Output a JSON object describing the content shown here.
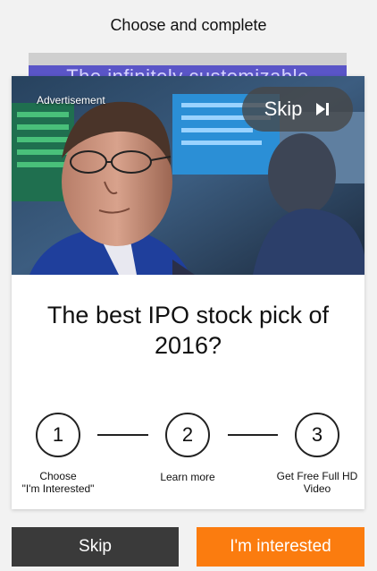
{
  "header": {
    "title": "Choose and complete"
  },
  "background_card": {
    "text": "The infinitely customizable"
  },
  "ad": {
    "label": "Advertisement",
    "skip_label": "Skip",
    "headline": "The best IPO stock pick of 2016?"
  },
  "steps": [
    {
      "number": "1",
      "label": "Choose\n\"I'm Interested\""
    },
    {
      "number": "2",
      "label": "Learn more"
    },
    {
      "number": "3",
      "label": "Get Free Full HD\nVideo"
    }
  ],
  "buttons": {
    "skip_label": "Skip",
    "interested_label": "I'm interested"
  },
  "colors": {
    "accent_orange": "#fb7c0f",
    "skip_dark": "#3a3a3a",
    "back_card_band": "#5a55c7"
  }
}
